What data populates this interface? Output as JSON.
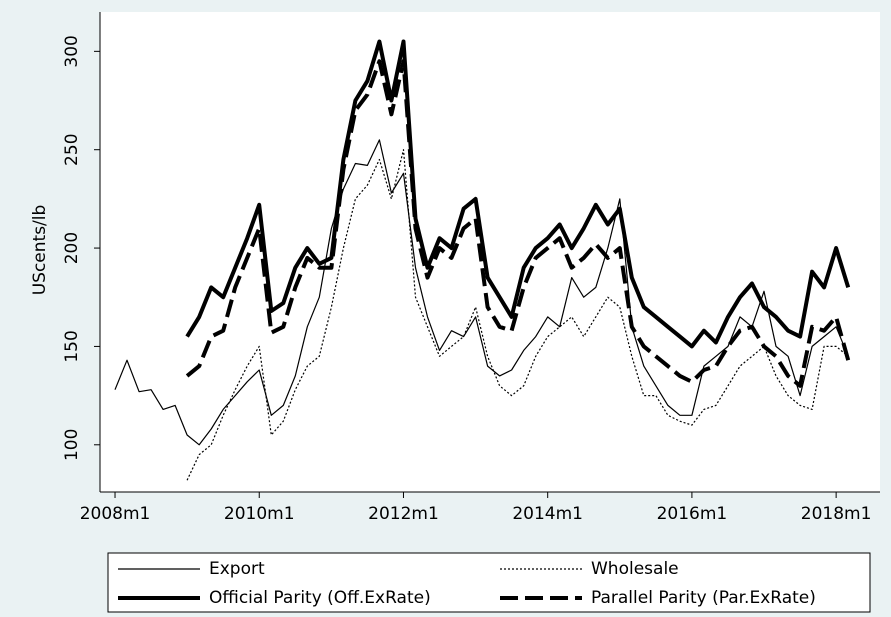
{
  "chart_data": {
    "type": "line",
    "y_label": "UScents/lb",
    "x": [
      576,
      578,
      580,
      582,
      584,
      586,
      588,
      590,
      592,
      594,
      596,
      598,
      600,
      602,
      604,
      606,
      608,
      610,
      612,
      614,
      616,
      618,
      620,
      622,
      624,
      626,
      628,
      630,
      632,
      634,
      636,
      638,
      640,
      642,
      644,
      646,
      648,
      650,
      652,
      654,
      656,
      658,
      660,
      662,
      664,
      666,
      668,
      670,
      672,
      674,
      676,
      678,
      680,
      682,
      684,
      686,
      688,
      690,
      692,
      694,
      696,
      698
    ],
    "xlim": [
      573.5,
      703.3
    ],
    "xticks": [
      {
        "value": 576,
        "label": "2008m1"
      },
      {
        "value": 600,
        "label": "2010m1"
      },
      {
        "value": 624,
        "label": "2012m1"
      },
      {
        "value": 648,
        "label": "2014m1"
      },
      {
        "value": 672,
        "label": "2016m1"
      },
      {
        "value": 696,
        "label": "2018m1"
      }
    ],
    "ylim": [
      76,
      320
    ],
    "yticks": [
      100,
      150,
      200,
      250,
      300
    ],
    "grid": false,
    "legend": "bottom",
    "series": [
      {
        "name": "Export",
        "color": "#000000",
        "width": 1.2,
        "dash": "none",
        "values": [
          128,
          143,
          127,
          128,
          118,
          120,
          105,
          100,
          108,
          118,
          125,
          132,
          138,
          115,
          120,
          135,
          160,
          175,
          210,
          230,
          243,
          242,
          255,
          228,
          238,
          190,
          165,
          148,
          158,
          155,
          165,
          140,
          135,
          138,
          148,
          155,
          165,
          160,
          185,
          175,
          180,
          200,
          225,
          160,
          140,
          130,
          120,
          115,
          115,
          140,
          145,
          150,
          165,
          160,
          178,
          150,
          145,
          125,
          150,
          155,
          160,
          145
        ]
      },
      {
        "name": "Wholesale",
        "color": "#000000",
        "width": 1.2,
        "dash": "2 2",
        "values": [
          null,
          null,
          null,
          null,
          null,
          null,
          82,
          95,
          100,
          115,
          128,
          140,
          150,
          105,
          112,
          128,
          140,
          145,
          170,
          200,
          225,
          232,
          245,
          225,
          250,
          175,
          160,
          145,
          150,
          155,
          170,
          145,
          130,
          125,
          130,
          145,
          155,
          160,
          165,
          155,
          165,
          175,
          170,
          145,
          125,
          125,
          115,
          112,
          110,
          118,
          120,
          130,
          140,
          145,
          150,
          135,
          125,
          120,
          118,
          150,
          150,
          145
        ]
      },
      {
        "name": "Official Parity (Off.ExRate)",
        "color": "#000000",
        "width": 4,
        "dash": "none",
        "values": [
          null,
          null,
          null,
          null,
          null,
          null,
          155,
          165,
          180,
          175,
          190,
          205,
          222,
          168,
          172,
          190,
          200,
          192,
          195,
          245,
          275,
          285,
          305,
          275,
          305,
          215,
          190,
          205,
          200,
          220,
          225,
          185,
          175,
          165,
          190,
          200,
          205,
          212,
          200,
          210,
          222,
          212,
          220,
          185,
          170,
          165,
          160,
          155,
          150,
          158,
          152,
          165,
          175,
          182,
          170,
          165,
          158,
          155,
          188,
          180,
          200,
          180
        ]
      },
      {
        "name": "Parallel Parity (Par.ExRate)",
        "color": "#000000",
        "width": 4,
        "dash": "18 7",
        "values": [
          null,
          null,
          null,
          null,
          null,
          null,
          135,
          140,
          155,
          158,
          180,
          195,
          210,
          157,
          160,
          180,
          195,
          190,
          190,
          240,
          270,
          278,
          295,
          268,
          295,
          210,
          185,
          200,
          195,
          210,
          215,
          170,
          160,
          158,
          180,
          195,
          200,
          205,
          190,
          195,
          202,
          195,
          200,
          160,
          150,
          145,
          140,
          135,
          132,
          138,
          140,
          150,
          158,
          160,
          150,
          145,
          135,
          130,
          160,
          158,
          165,
          143
        ]
      }
    ]
  }
}
